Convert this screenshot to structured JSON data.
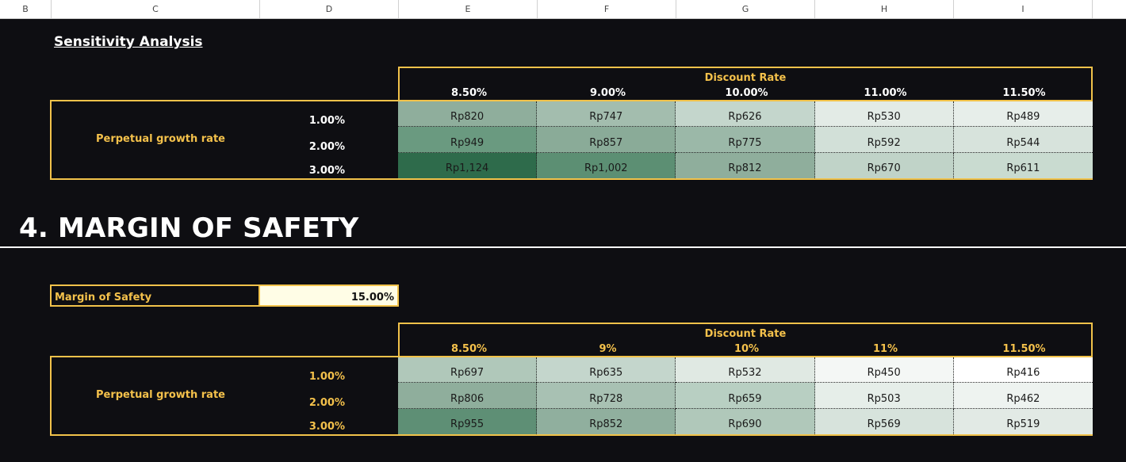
{
  "columns": [
    "B",
    "C",
    "D",
    "E",
    "F",
    "G",
    "H",
    "I"
  ],
  "sensitivity": {
    "title": "Sensitivity Analysis",
    "discount_rate_label": "Discount Rate",
    "rates": [
      "8.50%",
      "9.00%",
      "10.00%",
      "11.00%",
      "11.50%"
    ],
    "row_label": "Perpetual growth rate",
    "growth_rates": [
      "1.00%",
      "2.00%",
      "3.00%"
    ],
    "values": [
      [
        "Rp820",
        "Rp747",
        "Rp626",
        "Rp530",
        "Rp489"
      ],
      [
        "Rp949",
        "Rp857",
        "Rp775",
        "Rp592",
        "Rp544"
      ],
      [
        "Rp1,124",
        "Rp1,002",
        "Rp812",
        "Rp670",
        "Rp611"
      ]
    ],
    "colors": [
      [
        "#8fae9c",
        "#a3bdae",
        "#c4d6cc",
        "#e3ebe6",
        "#e7eeea"
      ],
      [
        "#6a9a80",
        "#8aab98",
        "#9bb8a8",
        "#d2e0d8",
        "#d7e3dc"
      ],
      [
        "#2e6b4b",
        "#5c8f73",
        "#8fae9c",
        "#c0d3c8",
        "#c9dbd0"
      ]
    ]
  },
  "section": {
    "title": "4. MARGIN OF SAFETY"
  },
  "mos": {
    "label": "Margin of Safety",
    "value": "15.00%"
  },
  "mos_table": {
    "discount_rate_label": "Discount Rate",
    "rates": [
      "8.50%",
      "9%",
      "10%",
      "11%",
      "11.50%"
    ],
    "row_label": "Perpetual growth rate",
    "growth_rates": [
      "1.00%",
      "2.00%",
      "3.00%"
    ],
    "values": [
      [
        "Rp697",
        "Rp635",
        "Rp532",
        "Rp450",
        "Rp416"
      ],
      [
        "Rp806",
        "Rp728",
        "Rp659",
        "Rp503",
        "Rp462"
      ],
      [
        "Rp955",
        "Rp852",
        "Rp690",
        "Rp569",
        "Rp519"
      ]
    ],
    "colors": [
      [
        "#b0c8ba",
        "#c4d6cc",
        "#e0e9e3",
        "#f4f7f5",
        "#ffffff"
      ],
      [
        "#8fae9c",
        "#a8c1b3",
        "#b8cfc2",
        "#e6eee9",
        "#eef3f0"
      ],
      [
        "#5e8f75",
        "#90af9e",
        "#b0c8ba",
        "#d7e3dc",
        "#e2eae5"
      ]
    ]
  }
}
